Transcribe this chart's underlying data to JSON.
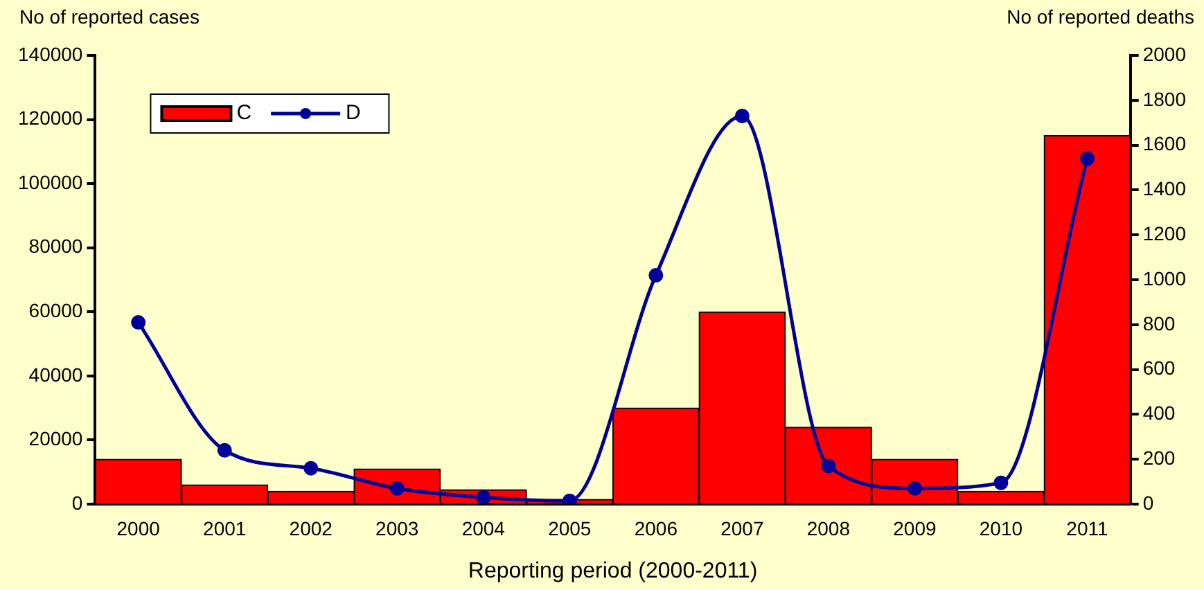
{
  "chart_data": {
    "type": "bar",
    "xlabel": "Reporting period (2000-2011)",
    "ylabel": "No of reported cases",
    "y2label": "No of reported deaths",
    "categories": [
      "2000",
      "2001",
      "2002",
      "2003",
      "2004",
      "2005",
      "2006",
      "2007",
      "2008",
      "2009",
      "2010",
      "2011"
    ],
    "series": [
      {
        "name": "C",
        "color": "#ff0000",
        "values": [
          14000,
          6000,
          4000,
          11000,
          4500,
          1500,
          30000,
          60000,
          24000,
          14000,
          4000,
          115000
        ]
      },
      {
        "name": "D",
        "type": "line",
        "axis": "y2",
        "color": "#000099",
        "marker": "circle",
        "values": [
          810,
          240,
          160,
          70,
          30,
          15,
          1020,
          1730,
          170,
          70,
          95,
          1540
        ]
      }
    ],
    "ylim": [
      0,
      140000
    ],
    "yticks": [
      0,
      20000,
      40000,
      60000,
      80000,
      100000,
      120000,
      140000
    ],
    "y2lim": [
      0,
      2000
    ],
    "y2ticks": [
      0,
      200,
      400,
      600,
      800,
      1000,
      1200,
      1400,
      1600,
      1800,
      2000
    ],
    "grid": false,
    "legend": "top left"
  }
}
